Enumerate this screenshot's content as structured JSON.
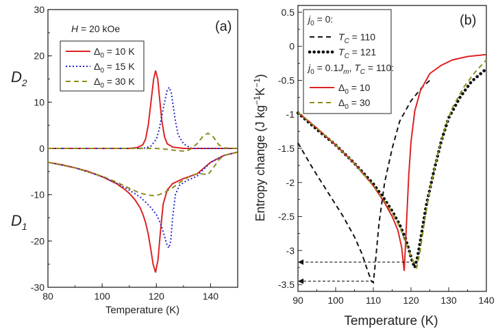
{
  "chart_data": [
    {
      "panel": "(a)",
      "type": "line",
      "xlabel": "Temperature (K)",
      "ylabel_upper": "D",
      "ylabel_upper_sub": "2",
      "ylabel_lower": "D",
      "ylabel_lower_sub": "1",
      "xlim": [
        80,
        150
      ],
      "ylim": [
        -30,
        30
      ],
      "xticks": [
        80,
        100,
        120,
        140
      ],
      "yticks": [
        -30,
        -20,
        -10,
        0,
        10,
        20,
        30
      ],
      "annotation": "H = 20 kOe",
      "annotation_parts": {
        "var": "H",
        "rest": " = 20 kOe"
      },
      "legend": {
        "placement": "upper-left",
        "entries": [
          {
            "symbol": "Δ",
            "sub": "0",
            "rest": " = 10 K",
            "color": "#dd2222",
            "dash": "solid"
          },
          {
            "symbol": "Δ",
            "sub": "0",
            "rest": " = 15 K",
            "color": "#2222cc",
            "dash": "dot"
          },
          {
            "symbol": "Δ",
            "sub": "0",
            "rest": " = 30 K",
            "color": "#8c8c1c",
            "dash": "dash"
          }
        ]
      },
      "series": [
        {
          "name": "Δ0 = 10 K (D2)",
          "color": "#dd2222",
          "dash": "solid",
          "x": [
            80,
            110,
            113,
            115,
            116,
            117,
            118,
            119,
            119.7,
            120.5,
            121,
            122,
            123,
            124,
            126,
            130,
            150
          ],
          "y": [
            0,
            0,
            0.2,
            0.8,
            2,
            5,
            10,
            15,
            16.8,
            15,
            12,
            6,
            2.5,
            1,
            0.3,
            0,
            0
          ]
        },
        {
          "name": "Δ0 = 15 K (D2)",
          "color": "#2222cc",
          "dash": "dot",
          "x": [
            80,
            112,
            116,
            118,
            120,
            121,
            122,
            123,
            124,
            124.7,
            125.5,
            126,
            127,
            128,
            130,
            133,
            150
          ],
          "y": [
            0,
            0,
            0.1,
            0.5,
            2,
            4,
            7,
            10,
            12.5,
            13.2,
            12,
            10,
            6,
            3,
            1,
            0,
            0
          ]
        },
        {
          "name": "Δ0 = 30 K (D2)",
          "color": "#8c8c1c",
          "dash": "dash",
          "x": [
            80,
            120,
            124,
            128,
            131,
            133,
            135,
            137,
            139,
            141,
            143,
            145,
            150
          ],
          "y": [
            0,
            0,
            -0.2,
            -0.5,
            -0.6,
            0,
            1,
            2.5,
            3.3,
            2.5,
            0.8,
            0.1,
            0
          ]
        },
        {
          "name": "Δ0 = 10 K (D1)",
          "color": "#dd2222",
          "dash": "solid",
          "x": [
            80,
            85,
            90,
            95,
            100,
            105,
            108,
            110,
            112,
            114,
            115,
            116,
            117,
            118,
            118.8,
            119.7,
            120.6,
            121.5,
            122.5,
            124,
            126,
            130,
            135,
            140,
            145,
            150
          ],
          "y": [
            -3,
            -3.5,
            -4.2,
            -5,
            -6.1,
            -7.5,
            -8.7,
            -9.7,
            -11,
            -12.8,
            -14.2,
            -16,
            -18.5,
            -22,
            -25,
            -26.8,
            -24,
            -18,
            -12,
            -9,
            -7.6,
            -6.5,
            -5.5,
            -3,
            -1.5,
            -0.8
          ]
        },
        {
          "name": "Δ0 = 15 K (D1)",
          "color": "#2222cc",
          "dash": "dot",
          "x": [
            80,
            90,
            100,
            105,
            110,
            114,
            116,
            118,
            120,
            121,
            122,
            123,
            124,
            124.6,
            125.3,
            126,
            127,
            128.5,
            131,
            135,
            140,
            145,
            150
          ],
          "y": [
            -3,
            -4.2,
            -6.1,
            -7.4,
            -9,
            -10.5,
            -11.6,
            -12.8,
            -14.3,
            -15.5,
            -17,
            -19,
            -21,
            -21.5,
            -20,
            -15,
            -10,
            -8,
            -7,
            -6,
            -3,
            -1.5,
            -0.8
          ]
        },
        {
          "name": "Δ0 = 30 K (D1)",
          "color": "#8c8c1c",
          "dash": "dash",
          "x": [
            80,
            90,
            100,
            105,
            110,
            113,
            115,
            117,
            119,
            121,
            123,
            126,
            129,
            131,
            133,
            135,
            137,
            139,
            141,
            143,
            145,
            150
          ],
          "y": [
            -3,
            -4.2,
            -6,
            -7.2,
            -8.6,
            -9.4,
            -9.8,
            -10.1,
            -10.2,
            -10,
            -9.5,
            -8.5,
            -7.2,
            -6.5,
            -5.8,
            -5.5,
            -5.5,
            -5.7,
            -4.2,
            -2.5,
            -1.5,
            -0.8
          ]
        }
      ]
    },
    {
      "panel": "(b)",
      "type": "line",
      "xlabel": "Temperature (K)",
      "ylabel": "Entropy change (J kg",
      "ylabel_exp": "−1",
      "ylabel_mid": "K",
      "ylabel_end": ")",
      "xlim": [
        90,
        140
      ],
      "ylim": [
        -3.6,
        0.6
      ],
      "xticks": [
        90,
        100,
        110,
        120,
        130,
        140
      ],
      "yticks": [
        0.5,
        0.0,
        -0.5,
        -1.0,
        -1.5,
        -2.0,
        -2.5,
        -3.0,
        -3.5
      ],
      "legend": {
        "placement": "upper-left",
        "header1": {
          "j": "j",
          "sub": "0",
          "rest": " = 0:"
        },
        "header2": {
          "j": "j",
          "sub": "0",
          "mid": " = 0.1",
          "jm": "J",
          "jm_sub": "m",
          "tail": ", ",
          "t": "T",
          "t_sub": "C",
          "rest": " = 110:"
        },
        "entries": [
          {
            "var": "T",
            "sub": "C",
            "rest": " = 110",
            "color": "#111111",
            "dash": "dash"
          },
          {
            "var": "T",
            "sub": "C",
            "rest": " = 121",
            "color": "#111111",
            "dash": "bigdot"
          },
          {
            "var": "Δ",
            "sub": "0",
            "rest": " = 10",
            "color": "#dd2222",
            "dash": "solid"
          },
          {
            "var": "Δ",
            "sub": "0",
            "rest": " = 30",
            "color": "#8c8c1c",
            "dash": "dash"
          }
        ]
      },
      "series": [
        {
          "name": "j0 = 0, TC = 110",
          "color": "#111111",
          "dash": "dash",
          "x": [
            90,
            94,
            98,
            102,
            105,
            107,
            108.5,
            109.5,
            110,
            110.5,
            111.5,
            113,
            115,
            117,
            120,
            123,
            125
          ],
          "y": [
            -1.42,
            -1.8,
            -2.15,
            -2.5,
            -2.8,
            -3.05,
            -3.3,
            -3.45,
            -3.47,
            -3.2,
            -2.6,
            -2.0,
            -1.5,
            -1.1,
            -0.8,
            -0.6,
            -0.5
          ]
        },
        {
          "name": "j0 = 0, TC = 121",
          "color": "#111111",
          "dash": "bigdot",
          "x": [
            90,
            95,
            100,
            105,
            110,
            113,
            115,
            117,
            118.5,
            119.5,
            120.3,
            121,
            121.7,
            122.5,
            124,
            126,
            128,
            130,
            133,
            136,
            140
          ],
          "y": [
            -0.98,
            -1.22,
            -1.45,
            -1.72,
            -2.02,
            -2.25,
            -2.42,
            -2.62,
            -2.82,
            -3.0,
            -3.15,
            -3.25,
            -3.1,
            -2.85,
            -2.35,
            -1.85,
            -1.4,
            -1.05,
            -0.75,
            -0.52,
            -0.33
          ]
        },
        {
          "name": "j0 = 0.1Jm, TC = 110, Δ0 = 10",
          "color": "#dd2222",
          "dash": "solid",
          "x": [
            90,
            95,
            100,
            105,
            110,
            113,
            115,
            116.5,
            117.5,
            118.2,
            118.8,
            119.4,
            120,
            121,
            122.5,
            125,
            128,
            131,
            135,
            140
          ],
          "y": [
            -0.97,
            -1.2,
            -1.45,
            -1.72,
            -2.05,
            -2.3,
            -2.5,
            -2.7,
            -2.95,
            -3.3,
            -2.6,
            -1.9,
            -1.4,
            -0.95,
            -0.65,
            -0.4,
            -0.28,
            -0.2,
            -0.15,
            -0.12
          ]
        },
        {
          "name": "j0 = 0.1Jm, TC = 110, Δ0 = 30",
          "color": "#8c8c1c",
          "dash": "dash",
          "x": [
            90,
            95,
            100,
            105,
            110,
            113,
            115,
            117,
            119,
            120.5,
            121.5,
            122.3,
            123.5,
            125,
            127,
            129,
            131,
            134,
            137,
            140
          ],
          "y": [
            -0.97,
            -1.2,
            -1.45,
            -1.72,
            -2.05,
            -2.28,
            -2.45,
            -2.65,
            -2.95,
            -3.15,
            -3.25,
            -3.05,
            -2.6,
            -2.1,
            -1.6,
            -1.2,
            -0.9,
            -0.6,
            -0.38,
            -0.2
          ]
        }
      ],
      "arrows": [
        {
          "from_x": 119.5,
          "to_x": 90,
          "y": -3.17
        },
        {
          "from_x": 110,
          "to_x": 90,
          "y": -3.45
        }
      ]
    }
  ],
  "panel_a_label": "(a)",
  "panel_b_label": "(b)"
}
